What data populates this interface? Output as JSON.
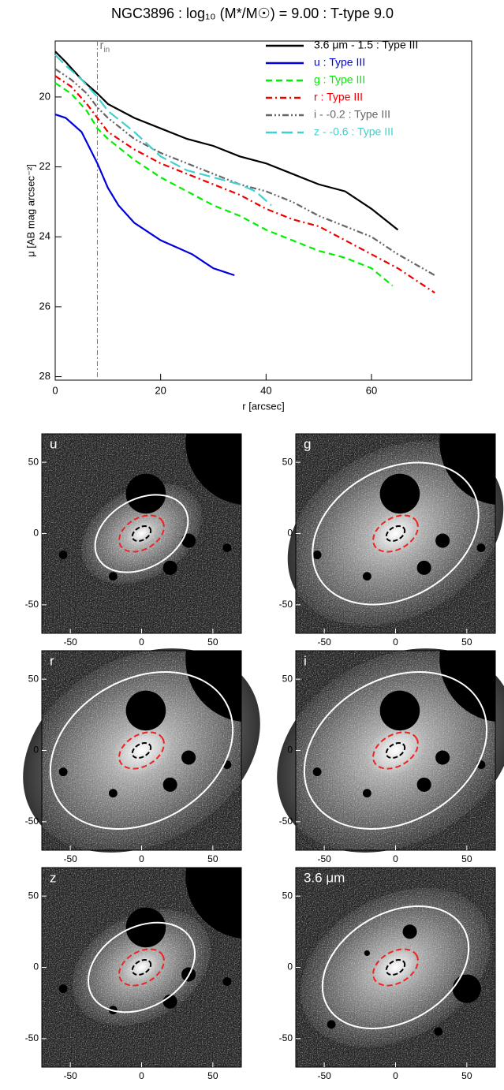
{
  "chart_data": {
    "type": "line",
    "title": "NGC3896 : log₁₀ (M*/M☉) = 9.00 : T-type 9.0",
    "x_label": "r [arcsec]",
    "y_label": "μ [AB mag arcsec⁻²]",
    "xlim": [
      0,
      79
    ],
    "ylim": [
      28.1,
      18.4
    ],
    "xticks": [
      0,
      20,
      40,
      60
    ],
    "yticks": [
      20,
      22,
      24,
      26,
      28
    ],
    "rin": 8,
    "rin_label": "r",
    "rin_sub": "in",
    "series": [
      {
        "name": "3.6 μm - 1.5 : Type III",
        "color": "#000000",
        "dash": "",
        "x": [
          0,
          2,
          5,
          8,
          10,
          15,
          20,
          25,
          30,
          35,
          40,
          45,
          50,
          55,
          60,
          65
        ],
        "values": [
          18.7,
          19.0,
          19.5,
          19.9,
          20.2,
          20.6,
          20.9,
          21.2,
          21.4,
          21.7,
          21.9,
          22.2,
          22.5,
          22.7,
          23.2,
          23.8
        ]
      },
      {
        "name": "u : Type III",
        "color": "#0000dd",
        "dash": "",
        "x": [
          0,
          2,
          5,
          8,
          10,
          12,
          15,
          18,
          20,
          23,
          26,
          28,
          30,
          32,
          34
        ],
        "values": [
          20.5,
          20.6,
          21.0,
          21.9,
          22.6,
          23.1,
          23.6,
          23.9,
          24.1,
          24.3,
          24.5,
          24.7,
          24.9,
          25.0,
          25.1
        ]
      },
      {
        "name": "g : Type III",
        "color": "#00ee00",
        "dash": "8 5",
        "x": [
          0,
          3,
          6,
          8,
          10,
          15,
          20,
          25,
          30,
          35,
          40,
          45,
          50,
          55,
          60,
          64
        ],
        "values": [
          19.6,
          19.9,
          20.4,
          20.9,
          21.2,
          21.8,
          22.3,
          22.7,
          23.1,
          23.4,
          23.8,
          24.1,
          24.4,
          24.6,
          24.9,
          25.4
        ]
      },
      {
        "name": "r : Type III",
        "color": "#ee0000",
        "dash": "8 4 2 4",
        "x": [
          0,
          3,
          6,
          8,
          10,
          15,
          20,
          25,
          30,
          35,
          40,
          45,
          50,
          55,
          60,
          65,
          72
        ],
        "values": [
          19.4,
          19.7,
          20.2,
          20.6,
          21.0,
          21.5,
          21.9,
          22.2,
          22.5,
          22.8,
          23.2,
          23.5,
          23.7,
          24.1,
          24.5,
          24.9,
          25.6
        ]
      },
      {
        "name": "i - -0.2 : Type III",
        "color": "#666666",
        "dash": "8 3 2 3 2 3",
        "x": [
          0,
          3,
          6,
          8,
          10,
          15,
          20,
          25,
          30,
          35,
          40,
          45,
          50,
          55,
          60,
          65,
          72
        ],
        "values": [
          19.2,
          19.5,
          19.9,
          20.3,
          20.6,
          21.2,
          21.6,
          21.9,
          22.2,
          22.5,
          22.7,
          23.0,
          23.4,
          23.7,
          24.0,
          24.5,
          25.1
        ]
      },
      {
        "name": "z - -0.6 : Type III",
        "color": "#40d0d0",
        "dash": "14 6",
        "x": [
          0,
          2,
          5,
          8,
          10,
          15,
          20,
          25,
          30,
          35,
          38,
          41
        ],
        "values": [
          18.8,
          19.1,
          19.5,
          20.0,
          20.4,
          21.0,
          21.7,
          22.1,
          22.3,
          22.5,
          22.7,
          23.1
        ]
      }
    ]
  },
  "image_panels": {
    "lim": [
      -70,
      70
    ],
    "ticks": [
      -50,
      0,
      50
    ],
    "panels": [
      {
        "label": "u"
      },
      {
        "label": "g"
      },
      {
        "label": "r"
      },
      {
        "label": "i"
      },
      {
        "label": "z"
      },
      {
        "label": "3.6 μm"
      }
    ]
  }
}
